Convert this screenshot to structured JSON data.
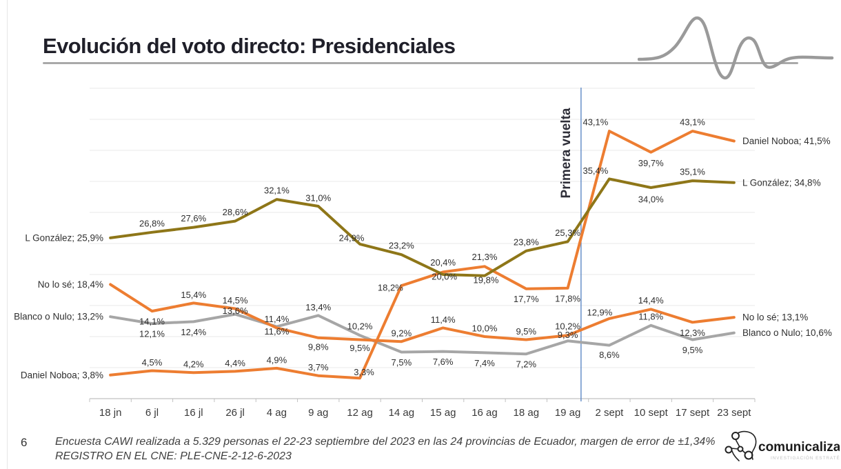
{
  "slide": {
    "title": "Evolución del voto directo: Presidenciales",
    "page_number": "6",
    "footnote_line1": "Encuesta CAWI realizada a 5.329 personas el 22-23 septiembre del 2023 en las 24 provincias de Ecuador, margen de error de ±1,34%",
    "footnote_line2": "REGISTRO EN EL CNE: PLE-CNE-2-12-6-2023",
    "logo_text": "comunicaliza",
    "logo_tagline": "INVESTIGACIÓN ESTRATÉGICA"
  },
  "chart_data": {
    "type": "line",
    "title": "",
    "xlabel": "",
    "ylabel": "",
    "ylim": [
      0,
      50
    ],
    "grid_step": 5,
    "grid": true,
    "legend_position": "inline-end-labels",
    "categories": [
      "18 jn",
      "6 jl",
      "16 jl",
      "26 jl",
      "4 ag",
      "9 ag",
      "12 ag",
      "14 ag",
      "15 ag",
      "16 ag",
      "18 ag",
      "19 ag",
      "2 sept",
      "10 sept",
      "17 sept",
      "23 sept"
    ],
    "annotation": {
      "label": "Primera vuelta",
      "between": [
        "19 ag",
        "2 sept"
      ],
      "line_color": "#5B87C5"
    },
    "series": [
      {
        "name": "L González",
        "color": "#8E7618",
        "values": [
          25.9,
          26.8,
          27.6,
          28.6,
          32.1,
          31.0,
          24.9,
          23.2,
          20.0,
          19.8,
          23.8,
          25.3,
          35.4,
          34.0,
          35.1,
          34.8
        ],
        "start_label": "L González; 25,9%",
        "end_label": "L González; 34,8%"
      },
      {
        "name": "Daniel Noboa",
        "color": "#ED7D31",
        "values": [
          3.8,
          4.5,
          4.2,
          4.4,
          4.9,
          3.7,
          3.3,
          18.2,
          20.4,
          21.3,
          17.7,
          17.8,
          43.1,
          39.7,
          43.1,
          41.5
        ],
        "start_label": "Daniel Noboa; 3,8%",
        "end_label": "Daniel Noboa; 41,5%"
      },
      {
        "name": "No lo sé",
        "color": "#ED7D31",
        "values": [
          18.4,
          14.1,
          15.4,
          14.5,
          11.4,
          9.8,
          9.5,
          9.2,
          11.4,
          10.0,
          9.5,
          10.2,
          12.9,
          14.4,
          12.3,
          13.1
        ],
        "start_label": "No lo sé; 18,4%",
        "end_label": "No lo sé; 13,1%"
      },
      {
        "name": "Blanco o Nulo",
        "color": "#A6A6A6",
        "values": [
          13.2,
          12.1,
          12.4,
          13.6,
          11.6,
          13.4,
          10.2,
          7.5,
          7.6,
          7.4,
          7.2,
          9.3,
          8.6,
          11.8,
          9.5,
          10.6
        ],
        "start_label": "Blanco o Nulo; 13,2%",
        "end_label": "Blanco o Nulo; 10,6%"
      }
    ]
  }
}
